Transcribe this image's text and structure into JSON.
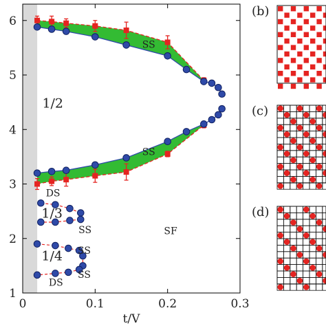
{
  "chart_data": {
    "type": "scatter",
    "xlabel": "t/V",
    "ylabel": "",
    "xlim": [
      0,
      0.3
    ],
    "ylim": [
      1,
      6.3
    ],
    "xticks": [
      0,
      0.1,
      0.2,
      0.3
    ],
    "xtick_labels": [
      "0",
      "0.1",
      "0.2",
      "0.3"
    ],
    "yticks": [
      1,
      2,
      3,
      4,
      5,
      6
    ],
    "ytick_labels": [
      "1",
      "2",
      "3",
      "4",
      "5",
      "6"
    ],
    "grid": false,
    "shaded_band": {
      "x": [
        0,
        0.02
      ],
      "color": "#d9d9d9"
    },
    "series": [
      {
        "role": "upper_circles",
        "marker": "circle",
        "color": "#2f4aa8",
        "x": [
          0.02,
          0.04,
          0.06,
          0.1,
          0.143,
          0.2,
          0.226,
          0.25,
          0.261,
          0.27,
          0.275
        ],
        "y": [
          5.88,
          5.84,
          5.8,
          5.7,
          5.55,
          5.35,
          5.1,
          4.88,
          4.85,
          4.77,
          4.65
        ]
      },
      {
        "role": "lower_circles",
        "marker": "circle",
        "color": "#2f4aa8",
        "x": [
          0.02,
          0.04,
          0.06,
          0.1,
          0.143,
          0.2,
          0.226,
          0.25,
          0.261,
          0.27,
          0.275
        ],
        "y": [
          3.2,
          3.23,
          3.25,
          3.35,
          3.48,
          3.78,
          3.96,
          4.1,
          4.18,
          4.27,
          4.38
        ]
      },
      {
        "role": "upper_squares",
        "marker": "square",
        "color": "#e52421",
        "x": [
          0.02,
          0.04,
          0.06,
          0.1,
          0.143,
          0.2,
          0.25
        ],
        "y": [
          6.0,
          5.98,
          5.95,
          5.9,
          5.82,
          5.6,
          4.9
        ],
        "err": [
          0.08,
          0.1,
          0.08,
          0.1,
          0.15,
          0.12,
          0.05
        ]
      },
      {
        "role": "lower_squares",
        "marker": "square",
        "color": "#e52421",
        "x": [
          0.02,
          0.04,
          0.06,
          0.1,
          0.143,
          0.2,
          0.25
        ],
        "y": [
          3.0,
          3.05,
          3.08,
          3.15,
          3.22,
          3.55,
          4.08
        ],
        "err": [
          0.1,
          0.08,
          0.12,
          0.12,
          0.15,
          0.05,
          0.05
        ]
      },
      {
        "role": "lobe_third",
        "marker": "circle",
        "color": "#2f4aa8",
        "x": [
          0.025,
          0.045,
          0.065,
          0.08,
          0.08,
          0.065,
          0.045,
          0.025
        ],
        "y": [
          2.65,
          2.62,
          2.55,
          2.47,
          2.35,
          2.33,
          2.3,
          2.3
        ]
      },
      {
        "role": "lobe_quarter",
        "marker": "circle",
        "color": "#2f4aa8",
        "x": [
          0.02,
          0.045,
          0.063,
          0.078,
          0.083,
          0.083,
          0.078,
          0.063,
          0.045,
          0.02
        ],
        "y": [
          1.9,
          1.87,
          1.82,
          1.78,
          1.68,
          1.5,
          1.43,
          1.38,
          1.36,
          1.33
        ]
      }
    ],
    "annotations": [
      {
        "text": "1/2",
        "x": 0.027,
        "y": 4.4
      },
      {
        "text": "SS",
        "x": 0.165,
        "y": 5.5
      },
      {
        "text": "SS",
        "x": 0.165,
        "y": 3.53
      },
      {
        "text": "DS",
        "x": 0.032,
        "y": 2.77
      },
      {
        "text": "1/3",
        "x": 0.026,
        "y": 2.38
      },
      {
        "text": "SS",
        "x": 0.077,
        "y": 2.1
      },
      {
        "text": "SF",
        "x": 0.195,
        "y": 2.08
      },
      {
        "text": "SS",
        "x": 0.076,
        "y": 1.72
      },
      {
        "text": "1/4",
        "x": 0.026,
        "y": 1.6
      },
      {
        "text": "SS",
        "x": 0.076,
        "y": 1.28
      },
      {
        "text": "DS",
        "x": 0.036,
        "y": 1.13
      }
    ],
    "panel_labels": [
      "(b)",
      "(c)",
      "(d)"
    ],
    "fill_color": "#33bb33"
  }
}
